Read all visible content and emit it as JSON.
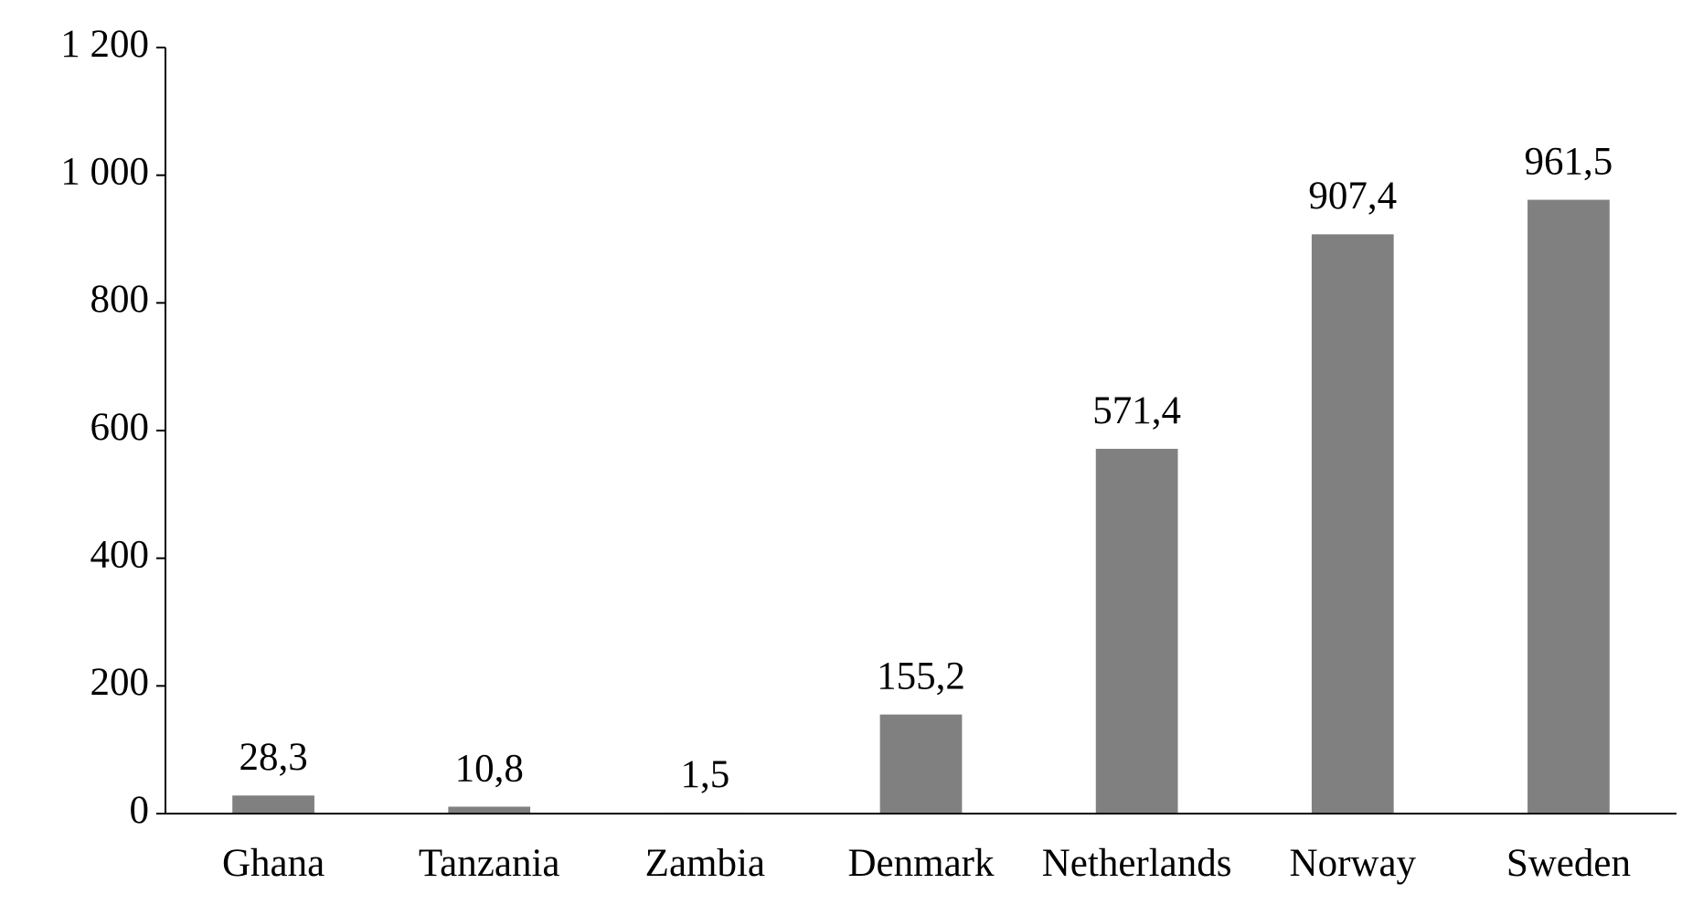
{
  "chart_data": {
    "type": "bar",
    "categories": [
      "Ghana",
      "Tanzania",
      "Zambia",
      "Denmark",
      "Netherlands",
      "Norway",
      "Sweden"
    ],
    "values": [
      28.3,
      10.8,
      1.5,
      155.2,
      571.4,
      907.4,
      961.5
    ],
    "value_labels": [
      "28,3",
      "10,8",
      "1,5",
      "155,2",
      "571,4",
      "907,4",
      "961,5"
    ],
    "color": "#808080",
    "ylim": [
      0,
      1200
    ],
    "yticks": [
      0,
      200,
      400,
      600,
      800,
      {
        "value": 1000,
        "label": "1 000"
      },
      {
        "value": 1200,
        "label": "1 200"
      }
    ],
    "grid": false
  }
}
